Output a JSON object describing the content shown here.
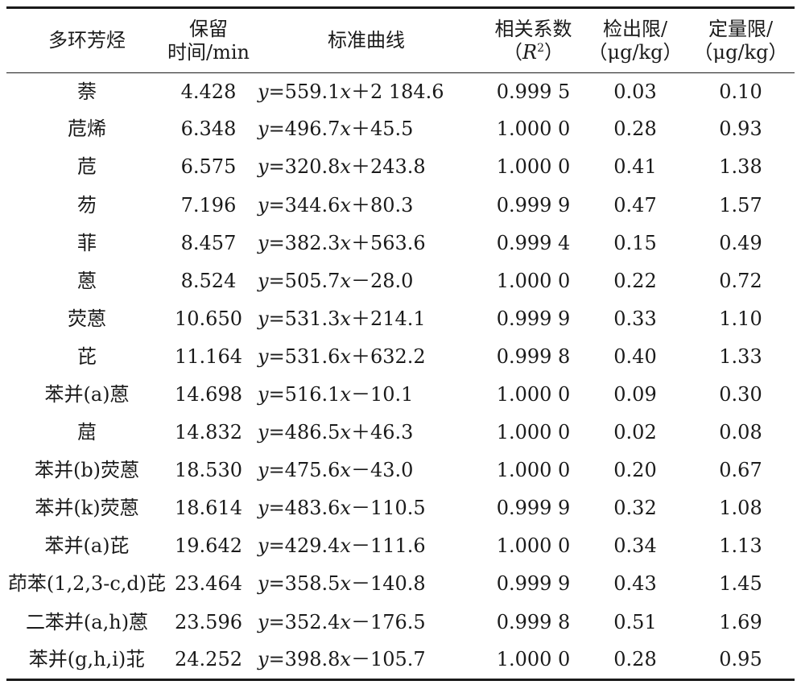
{
  "table": {
    "headers": {
      "pah": "多环芳烃",
      "rt_line1": "保留",
      "rt_line2": "时间/min",
      "curve": "标准曲线",
      "r_line1": "相关系数",
      "r_open": "（",
      "r_sym": "R",
      "r_sup": "2",
      "r_close": "）",
      "lod_line1": "检出限/",
      "lod_line2": "（μg/kg）",
      "loq_line1": "定量限/",
      "loq_line2": "（μg/kg）"
    },
    "rows": [
      {
        "name": "萘",
        "rt": "4.428",
        "slope": "559.1",
        "sign": "＋",
        "intercept": "2 184.6",
        "r2": "0.999 5",
        "lod": "0.03",
        "loq": "0.10"
      },
      {
        "name": "苊烯",
        "rt": "6.348",
        "slope": "496.7",
        "sign": "＋",
        "intercept": "45.5",
        "r2": "1.000 0",
        "lod": "0.28",
        "loq": "0.93"
      },
      {
        "name": "苊",
        "rt": "6.575",
        "slope": "320.8",
        "sign": "＋",
        "intercept": "243.8",
        "r2": "1.000 0",
        "lod": "0.41",
        "loq": "1.38"
      },
      {
        "name": "芴",
        "rt": "7.196",
        "slope": "344.6",
        "sign": "＋",
        "intercept": "80.3",
        "r2": "0.999 9",
        "lod": "0.47",
        "loq": "1.57"
      },
      {
        "name": "菲",
        "rt": "8.457",
        "slope": "382.3",
        "sign": "＋",
        "intercept": "563.6",
        "r2": "0.999 4",
        "lod": "0.15",
        "loq": "0.49"
      },
      {
        "name": "蒽",
        "rt": "8.524",
        "slope": "505.7",
        "sign": "－",
        "intercept": "28.0",
        "r2": "1.000 0",
        "lod": "0.22",
        "loq": "0.72"
      },
      {
        "name": "荧蒽",
        "rt": "10.650",
        "slope": "531.3",
        "sign": "＋",
        "intercept": "214.1",
        "r2": "0.999 9",
        "lod": "0.33",
        "loq": "1.10"
      },
      {
        "name": "芘",
        "rt": "11.164",
        "slope": "531.6",
        "sign": "＋",
        "intercept": "632.2",
        "r2": "0.999 8",
        "lod": "0.40",
        "loq": "1.33"
      },
      {
        "name": "苯并(a)蒽",
        "rt": "14.698",
        "slope": "516.1",
        "sign": "－",
        "intercept": "10.1",
        "r2": "1.000 0",
        "lod": "0.09",
        "loq": "0.30"
      },
      {
        "name": "䓛",
        "rt": "14.832",
        "slope": "486.5",
        "sign": "＋",
        "intercept": "46.3",
        "r2": "1.000 0",
        "lod": "0.02",
        "loq": "0.08"
      },
      {
        "name": "苯并(b)荧蒽",
        "rt": "18.530",
        "slope": "475.6",
        "sign": "－",
        "intercept": "43.0",
        "r2": "1.000 0",
        "lod": "0.20",
        "loq": "0.67"
      },
      {
        "name": "苯并(k)荧蒽",
        "rt": "18.614",
        "slope": "483.6",
        "sign": "－",
        "intercept": "110.5",
        "r2": "0.999 9",
        "lod": "0.32",
        "loq": "1.08"
      },
      {
        "name": "苯并(a)芘",
        "rt": "19.642",
        "slope": "429.4",
        "sign": "－",
        "intercept": "111.6",
        "r2": "1.000 0",
        "lod": "0.34",
        "loq": "1.13"
      },
      {
        "name": "茚苯(1,2,3-c,d)芘",
        "rt": "23.464",
        "slope": "358.5",
        "sign": "－",
        "intercept": "140.8",
        "r2": "0.999 9",
        "lod": "0.43",
        "loq": "1.45"
      },
      {
        "name": "二苯并(a,h)蒽",
        "rt": "23.596",
        "slope": "352.4",
        "sign": "－",
        "intercept": "176.5",
        "r2": "0.999 8",
        "lod": "0.51",
        "loq": "1.69"
      },
      {
        "name": "苯并(g,h,i)苝",
        "rt": "24.252",
        "slope": "398.8",
        "sign": "－",
        "intercept": "105.7",
        "r2": "1.000 0",
        "lod": "0.28",
        "loq": "0.95"
      }
    ]
  }
}
